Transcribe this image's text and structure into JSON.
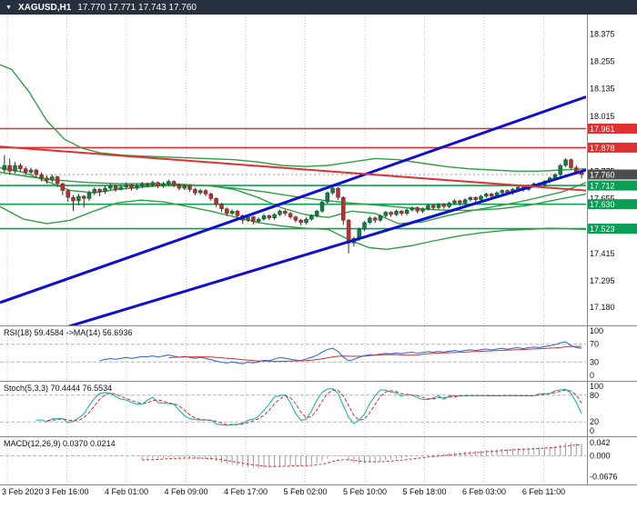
{
  "header": {
    "symbol": "XAGUSD,H1",
    "ohlc": "17.770 17.771 17.743 17.760",
    "dropdown_icon": "▼"
  },
  "colors": {
    "header_bg": "#26303f",
    "header_text": "#ffffff",
    "background": "#ffffff",
    "grid": "#c9c9c9",
    "separator": "#8a8a8a",
    "axis_text": "#111111",
    "up_candle": "#167a44",
    "up_border": "#0b5530",
    "down_candle": "#b23232",
    "down_border": "#7d1f1f",
    "wick": "#26322c",
    "trend_blue": "#0f0fcf",
    "level_red": "#e03030",
    "level_green": "#0aa050",
    "ma_green": "#2f9e44",
    "badge_red": "#e03030",
    "badge_green": "#089e54",
    "badge_current": "#4d4d4d",
    "rsi_line": "#3a6fd8",
    "rsi_ma": "#cc3333",
    "stoch_main": "#20b2aa",
    "stoch_signal": "#d03030",
    "macd_hist": "#9a9a9a",
    "macd_signal": "#d03030"
  },
  "chart_data": {
    "type": "candlestick",
    "symbol": "XAGUSD",
    "timeframe": "H1",
    "title": "XAGUSD,H1 17.770 17.771 17.743 17.760",
    "price_range": {
      "top": 18.46,
      "bottom": 17.1
    },
    "y_ticks": [
      "18.375",
      "18.255",
      "18.135",
      "18.015",
      "17.775",
      "17.655",
      "17.415",
      "17.295",
      "17.180"
    ],
    "x_labels": [
      "3 Feb 2020",
      "3 Feb 16:00",
      "4 Feb 01:00",
      "4 Feb 09:00",
      "4 Feb 17:00",
      "5 Feb 02:00",
      "5 Feb 10:00",
      "5 Feb 18:00",
      "6 Feb 03:00",
      "6 Feb 11:00"
    ],
    "candles": [
      [
        17.78,
        17.845,
        17.77,
        17.8
      ],
      [
        17.8,
        17.83,
        17.76,
        17.775
      ],
      [
        17.775,
        17.815,
        17.765,
        17.8
      ],
      [
        17.8,
        17.81,
        17.77,
        17.785
      ],
      [
        17.785,
        17.795,
        17.755,
        17.77
      ],
      [
        17.77,
        17.79,
        17.76,
        17.78
      ],
      [
        17.78,
        17.785,
        17.745,
        17.76
      ],
      [
        17.76,
        17.77,
        17.73,
        17.745
      ],
      [
        17.745,
        17.755,
        17.72,
        17.735
      ],
      [
        17.735,
        17.76,
        17.725,
        17.75
      ],
      [
        17.75,
        17.755,
        17.705,
        17.72
      ],
      [
        17.72,
        17.725,
        17.67,
        17.69
      ],
      [
        17.69,
        17.695,
        17.64,
        17.66
      ],
      [
        17.66,
        17.67,
        17.6,
        17.645
      ],
      [
        17.645,
        17.675,
        17.625,
        17.665
      ],
      [
        17.665,
        17.67,
        17.615,
        17.655
      ],
      [
        17.655,
        17.69,
        17.645,
        17.68
      ],
      [
        17.68,
        17.705,
        17.67,
        17.695
      ],
      [
        17.695,
        17.7,
        17.665,
        17.685
      ],
      [
        17.685,
        17.71,
        17.675,
        17.7
      ],
      [
        17.7,
        17.72,
        17.69,
        17.71
      ],
      [
        17.71,
        17.715,
        17.685,
        17.695
      ],
      [
        17.695,
        17.715,
        17.69,
        17.705
      ],
      [
        17.705,
        17.725,
        17.695,
        17.715
      ],
      [
        17.715,
        17.72,
        17.69,
        17.7
      ],
      [
        17.7,
        17.718,
        17.692,
        17.71
      ],
      [
        17.71,
        17.728,
        17.7,
        17.72
      ],
      [
        17.72,
        17.726,
        17.704,
        17.715
      ],
      [
        17.715,
        17.733,
        17.706,
        17.725
      ],
      [
        17.725,
        17.73,
        17.7,
        17.71
      ],
      [
        17.71,
        17.728,
        17.702,
        17.72
      ],
      [
        17.72,
        17.738,
        17.71,
        17.73
      ],
      [
        17.73,
        17.735,
        17.705,
        17.715
      ],
      [
        17.715,
        17.722,
        17.69,
        17.7
      ],
      [
        17.7,
        17.718,
        17.692,
        17.71
      ],
      [
        17.71,
        17.716,
        17.685,
        17.695
      ],
      [
        17.695,
        17.702,
        17.67,
        17.68
      ],
      [
        17.68,
        17.698,
        17.672,
        17.69
      ],
      [
        17.69,
        17.696,
        17.665,
        17.675
      ],
      [
        17.675,
        17.682,
        17.645,
        17.655
      ],
      [
        17.655,
        17.66,
        17.618,
        17.63
      ],
      [
        17.63,
        17.636,
        17.598,
        17.61
      ],
      [
        17.61,
        17.616,
        17.578,
        17.59
      ],
      [
        17.59,
        17.608,
        17.582,
        17.6
      ],
      [
        17.6,
        17.606,
        17.568,
        17.58
      ],
      [
        17.58,
        17.586,
        17.545,
        17.56
      ],
      [
        17.56,
        17.582,
        17.552,
        17.575
      ],
      [
        17.575,
        17.58,
        17.542,
        17.555
      ],
      [
        17.555,
        17.572,
        17.548,
        17.565
      ],
      [
        17.565,
        17.588,
        17.558,
        17.58
      ],
      [
        17.58,
        17.586,
        17.56,
        17.57
      ],
      [
        17.57,
        17.592,
        17.562,
        17.585
      ],
      [
        17.585,
        17.606,
        17.578,
        17.6
      ],
      [
        17.6,
        17.605,
        17.58,
        17.59
      ],
      [
        17.59,
        17.596,
        17.566,
        17.575
      ],
      [
        17.575,
        17.58,
        17.55,
        17.56
      ],
      [
        17.56,
        17.566,
        17.536,
        17.55
      ],
      [
        17.55,
        17.572,
        17.542,
        17.565
      ],
      [
        17.565,
        17.586,
        17.558,
        17.58
      ],
      [
        17.58,
        17.606,
        17.572,
        17.6
      ],
      [
        17.6,
        17.646,
        17.592,
        17.64
      ],
      [
        17.64,
        17.686,
        17.632,
        17.68
      ],
      [
        17.68,
        17.71,
        17.672,
        17.7
      ],
      [
        17.7,
        17.706,
        17.65,
        17.66
      ],
      [
        17.66,
        17.665,
        17.54,
        17.56
      ],
      [
        17.56,
        17.566,
        17.415,
        17.46
      ],
      [
        17.46,
        17.488,
        17.445,
        17.48
      ],
      [
        17.48,
        17.528,
        17.47,
        17.52
      ],
      [
        17.52,
        17.556,
        17.512,
        17.55
      ],
      [
        17.55,
        17.578,
        17.542,
        17.57
      ],
      [
        17.57,
        17.576,
        17.548,
        17.56
      ],
      [
        17.56,
        17.586,
        17.552,
        17.58
      ],
      [
        17.58,
        17.601,
        17.572,
        17.595
      ],
      [
        17.595,
        17.6,
        17.575,
        17.585
      ],
      [
        17.585,
        17.606,
        17.578,
        17.6
      ],
      [
        17.6,
        17.605,
        17.58,
        17.59
      ],
      [
        17.59,
        17.611,
        17.582,
        17.605
      ],
      [
        17.605,
        17.621,
        17.598,
        17.615
      ],
      [
        17.615,
        17.62,
        17.59,
        17.6
      ],
      [
        17.6,
        17.616,
        17.592,
        17.61
      ],
      [
        17.61,
        17.631,
        17.602,
        17.625
      ],
      [
        17.625,
        17.63,
        17.605,
        17.615
      ],
      [
        17.615,
        17.636,
        17.608,
        17.63
      ],
      [
        17.63,
        17.635,
        17.61,
        17.62
      ],
      [
        17.62,
        17.641,
        17.612,
        17.635
      ],
      [
        17.635,
        17.651,
        17.628,
        17.645
      ],
      [
        17.645,
        17.65,
        17.625,
        17.635
      ],
      [
        17.635,
        17.656,
        17.628,
        17.65
      ],
      [
        17.65,
        17.666,
        17.642,
        17.66
      ],
      [
        17.66,
        17.665,
        17.64,
        17.65
      ],
      [
        17.65,
        17.671,
        17.642,
        17.665
      ],
      [
        17.665,
        17.681,
        17.658,
        17.675
      ],
      [
        17.675,
        17.68,
        17.655,
        17.665
      ],
      [
        17.665,
        17.686,
        17.658,
        17.68
      ],
      [
        17.68,
        17.696,
        17.672,
        17.69
      ],
      [
        17.69,
        17.695,
        17.67,
        17.68
      ],
      [
        17.68,
        17.701,
        17.672,
        17.695
      ],
      [
        17.695,
        17.711,
        17.688,
        17.705
      ],
      [
        17.705,
        17.71,
        17.685,
        17.695
      ],
      [
        17.695,
        17.716,
        17.688,
        17.71
      ],
      [
        17.71,
        17.726,
        17.702,
        17.72
      ],
      [
        17.72,
        17.725,
        17.705,
        17.715
      ],
      [
        17.715,
        17.736,
        17.708,
        17.73
      ],
      [
        17.73,
        17.751,
        17.722,
        17.745
      ],
      [
        17.745,
        17.766,
        17.738,
        17.76
      ],
      [
        17.76,
        17.806,
        17.752,
        17.8
      ],
      [
        17.8,
        17.831,
        17.792,
        17.825
      ],
      [
        17.825,
        17.83,
        17.78,
        17.79
      ],
      [
        17.79,
        17.8,
        17.76,
        17.77
      ],
      [
        17.77,
        17.771,
        17.743,
        17.76
      ]
    ],
    "horizontal_lines": [
      {
        "name": "resistance-line-17961",
        "price": 17.961,
        "color": "#e03030",
        "width": 1.6
      },
      {
        "name": "resistance-line-17878",
        "price": 17.878,
        "color": "#e03030",
        "width": 1.6
      },
      {
        "name": "support-line-17712",
        "price": 17.712,
        "color": "#0aa050",
        "width": 1.6
      },
      {
        "name": "support-line-17630",
        "price": 17.63,
        "color": "#0aa050",
        "width": 1.6
      },
      {
        "name": "support-line-17523",
        "price": 17.523,
        "color": "#0aa050",
        "width": 1.6
      }
    ],
    "price_badges": [
      {
        "name": "badge-17961",
        "value": "17.961",
        "price": 17.961,
        "bg": "#e03030"
      },
      {
        "name": "badge-17878",
        "value": "17.878",
        "price": 17.878,
        "bg": "#e03030"
      },
      {
        "name": "badge-current-price",
        "value": "17.760",
        "price": 17.76,
        "bg": "#4d4d4d"
      },
      {
        "name": "badge-17712",
        "value": "17.712",
        "price": 17.712,
        "bg": "#089e54"
      },
      {
        "name": "badge-17630",
        "value": "17.630",
        "price": 17.63,
        "bg": "#089e54"
      },
      {
        "name": "badge-17523",
        "value": "17.523",
        "price": 17.523,
        "bg": "#089e54"
      }
    ],
    "current_price_line": {
      "price": 17.76,
      "color": "#999999"
    },
    "trendlines": [
      {
        "name": "ascending-trendline-upper",
        "color": "#0f0fcf",
        "width": 3,
        "x1": 0,
        "p1": 17.2,
        "x2": 1,
        "p2": 18.1
      },
      {
        "name": "ascending-trendline-lower",
        "color": "#0f0fcf",
        "width": 3,
        "x1": 0.02,
        "p1": 17.02,
        "x2": 1,
        "p2": 17.78
      },
      {
        "name": "descending-trendline",
        "color": "#e03030",
        "width": 2,
        "x1": 0,
        "p1": 17.882,
        "x2": 1,
        "p2": 17.69
      }
    ],
    "ma_curves": [
      {
        "name": "ma-upper-band",
        "color": "#2f9e44",
        "points": [
          [
            0,
            18.24
          ],
          [
            0.02,
            18.22
          ],
          [
            0.05,
            18.12
          ],
          [
            0.08,
            17.995
          ],
          [
            0.11,
            17.915
          ],
          [
            0.14,
            17.875
          ],
          [
            0.17,
            17.855
          ],
          [
            0.21,
            17.845
          ],
          [
            0.25,
            17.84
          ],
          [
            0.3,
            17.835
          ],
          [
            0.35,
            17.83
          ],
          [
            0.4,
            17.825
          ],
          [
            0.44,
            17.815
          ],
          [
            0.48,
            17.8
          ],
          [
            0.52,
            17.795
          ],
          [
            0.56,
            17.8
          ],
          [
            0.6,
            17.815
          ],
          [
            0.64,
            17.83
          ],
          [
            0.68,
            17.825
          ],
          [
            0.72,
            17.81
          ],
          [
            0.76,
            17.795
          ],
          [
            0.8,
            17.785
          ],
          [
            0.84,
            17.78
          ],
          [
            0.88,
            17.775
          ],
          [
            0.92,
            17.775
          ],
          [
            0.96,
            17.78
          ],
          [
            1,
            17.785
          ]
        ]
      },
      {
        "name": "ma-slow",
        "color": "#2f9e44",
        "points": [
          [
            0,
            17.77
          ],
          [
            0.05,
            17.75
          ],
          [
            0.1,
            17.735
          ],
          [
            0.15,
            17.725
          ],
          [
            0.2,
            17.72
          ],
          [
            0.25,
            17.72
          ],
          [
            0.3,
            17.718
          ],
          [
            0.35,
            17.712
          ],
          [
            0.4,
            17.7
          ],
          [
            0.45,
            17.685
          ],
          [
            0.5,
            17.665
          ],
          [
            0.55,
            17.648
          ],
          [
            0.6,
            17.635
          ],
          [
            0.65,
            17.625
          ],
          [
            0.7,
            17.613
          ],
          [
            0.75,
            17.605
          ],
          [
            0.8,
            17.603
          ],
          [
            0.85,
            17.61
          ],
          [
            0.9,
            17.625
          ],
          [
            0.95,
            17.65
          ],
          [
            1,
            17.675
          ]
        ]
      },
      {
        "name": "ma-fast",
        "color": "#2f9e44",
        "points": [
          [
            0,
            17.79
          ],
          [
            0.04,
            17.77
          ],
          [
            0.08,
            17.73
          ],
          [
            0.12,
            17.69
          ],
          [
            0.16,
            17.68
          ],
          [
            0.2,
            17.695
          ],
          [
            0.24,
            17.705
          ],
          [
            0.28,
            17.712
          ],
          [
            0.32,
            17.715
          ],
          [
            0.36,
            17.71
          ],
          [
            0.4,
            17.695
          ],
          [
            0.44,
            17.66
          ],
          [
            0.48,
            17.615
          ],
          [
            0.52,
            17.585
          ],
          [
            0.56,
            17.572
          ],
          [
            0.6,
            17.6
          ],
          [
            0.64,
            17.59
          ],
          [
            0.68,
            17.545
          ],
          [
            0.72,
            17.552
          ],
          [
            0.76,
            17.578
          ],
          [
            0.8,
            17.6
          ],
          [
            0.84,
            17.618
          ],
          [
            0.88,
            17.637
          ],
          [
            0.92,
            17.66
          ],
          [
            0.96,
            17.685
          ],
          [
            1,
            17.725
          ]
        ]
      },
      {
        "name": "ma-lower-band",
        "color": "#2f9e44",
        "points": [
          [
            0,
            17.62
          ],
          [
            0.04,
            17.565
          ],
          [
            0.08,
            17.545
          ],
          [
            0.12,
            17.56
          ],
          [
            0.16,
            17.6
          ],
          [
            0.2,
            17.636
          ],
          [
            0.24,
            17.648
          ],
          [
            0.28,
            17.64
          ],
          [
            0.32,
            17.62
          ],
          [
            0.36,
            17.6
          ],
          [
            0.4,
            17.575
          ],
          [
            0.44,
            17.55
          ],
          [
            0.48,
            17.535
          ],
          [
            0.52,
            17.525
          ],
          [
            0.56,
            17.52
          ],
          [
            0.6,
            17.47
          ],
          [
            0.63,
            17.44
          ],
          [
            0.66,
            17.433
          ],
          [
            0.7,
            17.448
          ],
          [
            0.74,
            17.47
          ],
          [
            0.78,
            17.49
          ],
          [
            0.82,
            17.505
          ],
          [
            0.86,
            17.515
          ],
          [
            0.9,
            17.52
          ],
          [
            0.94,
            17.525
          ],
          [
            1,
            17.52
          ]
        ]
      }
    ],
    "indicators": {
      "rsi": {
        "label": "RSI(18) 59.4584 ->MA(14) 56.6936",
        "period": 18,
        "ma_period": 14,
        "levels": [
          70,
          30
        ],
        "axis_labels": [
          "100",
          "70",
          "30",
          "0"
        ]
      },
      "stoch": {
        "label": "Stoch(5,3,3) 70.4444 76.5534",
        "k": 5,
        "d": 3,
        "slowing": 3,
        "levels": [
          80,
          20
        ],
        "axis_labels": [
          "100",
          "80",
          "20",
          "0"
        ]
      },
      "macd": {
        "label": "MACD(12,26,9) 0.0370 0.0214",
        "fast": 12,
        "slow": 26,
        "signal": 9,
        "axis_labels": [
          "0.042",
          "0.000",
          "-0.0676"
        ],
        "range": {
          "top": 0.048,
          "bottom": -0.078
        }
      }
    }
  }
}
